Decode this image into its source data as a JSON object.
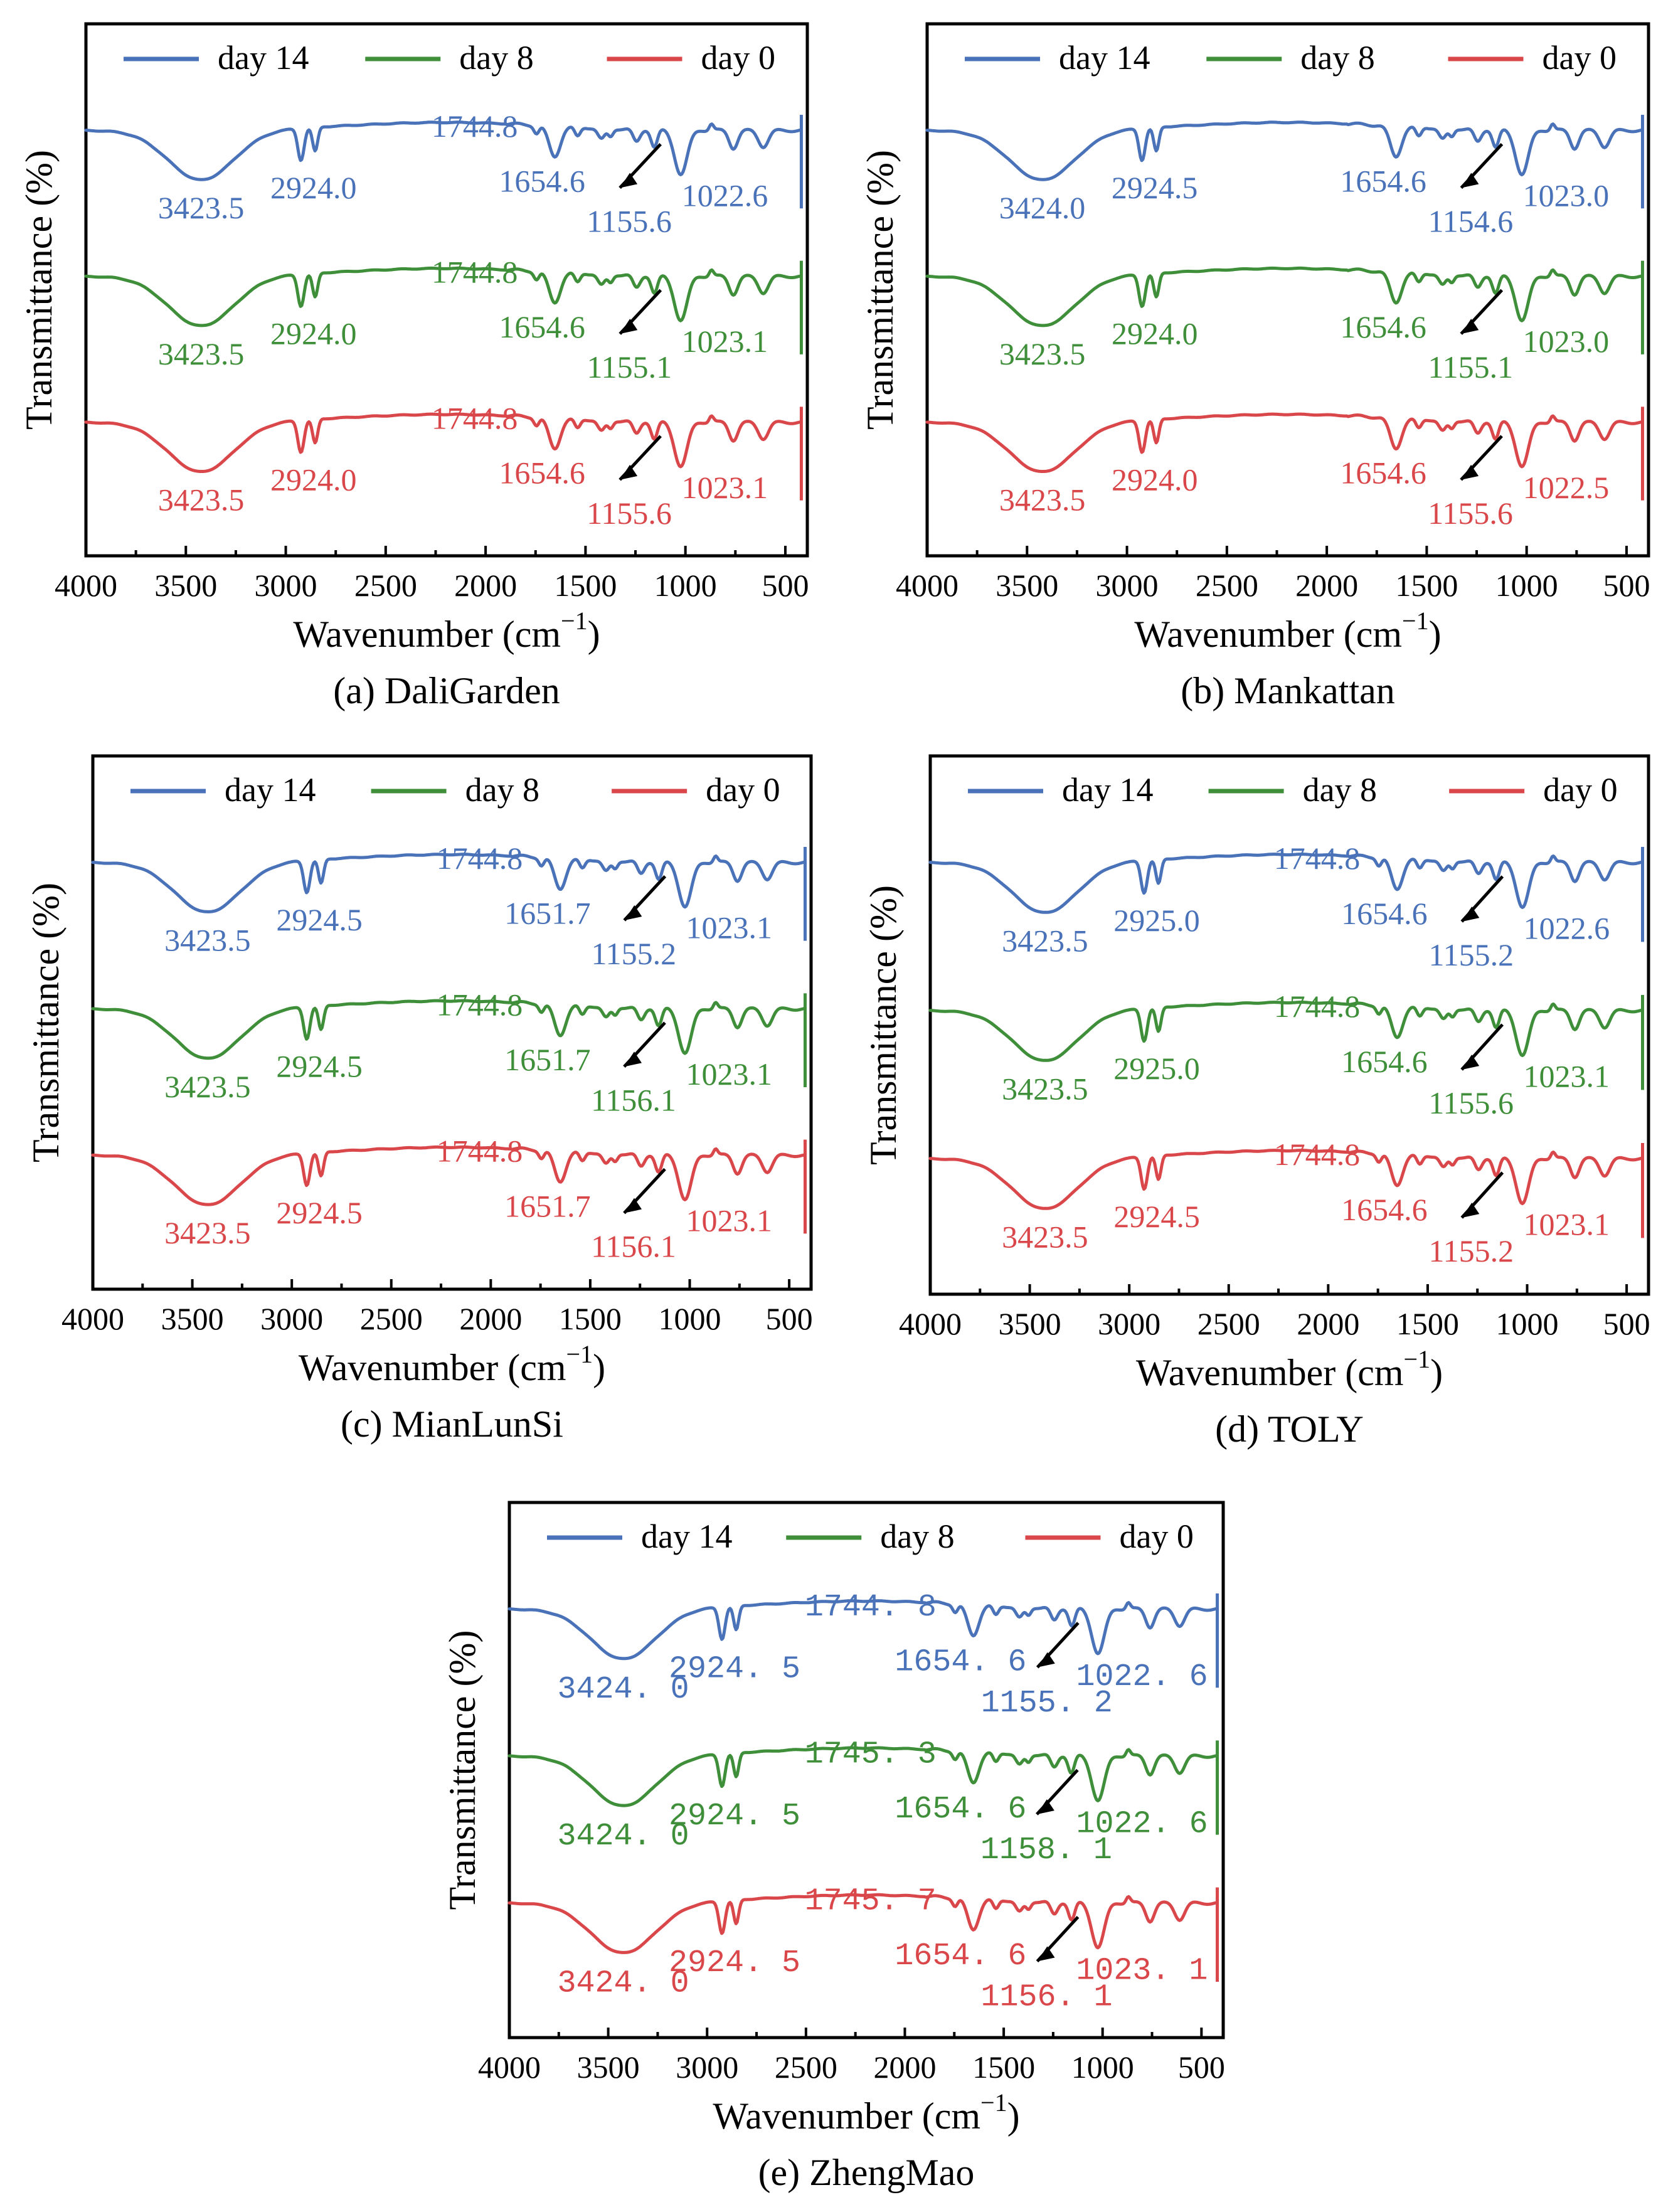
{
  "colors": {
    "day 14": "#4a72b8",
    "day 8": "#3f8f3a",
    "day 0": "#d9474a"
  },
  "chart_data": [
    {
      "type": "line",
      "caption": "(a) DaliGarden",
      "xlabel": "Wavenumber (cm−1)",
      "ylabel": "Transmittance (%)",
      "xlim": [
        4000,
        400
      ],
      "xticks": [
        "4000",
        "3500",
        "3000",
        "2500",
        "2000",
        "1500",
        "1000",
        "500"
      ],
      "legend": [
        "day 14",
        "day 8",
        "day 0"
      ],
      "legend_position": "top",
      "series": [
        {
          "name": "day 14",
          "offset": 0,
          "peaks": [
            {
              "wn": 3423.5,
              "label": "3423.5"
            },
            {
              "wn": 2924.0,
              "label": "2924.0"
            },
            {
              "wn": 1744.8,
              "label": "1744.8",
              "shoulder": true
            },
            {
              "wn": 1654.6,
              "label": "1654.6"
            },
            {
              "wn": 1155.6,
              "label": "1155.6",
              "arrow": true
            },
            {
              "wn": 1022.6,
              "label": "1022.6"
            }
          ]
        },
        {
          "name": "day 8",
          "offset": 1,
          "peaks": [
            {
              "wn": 3423.5,
              "label": "3423.5"
            },
            {
              "wn": 2924.0,
              "label": "2924.0"
            },
            {
              "wn": 1744.8,
              "label": "1744.8",
              "shoulder": true
            },
            {
              "wn": 1654.6,
              "label": "1654.6"
            },
            {
              "wn": 1155.1,
              "label": "1155.1",
              "arrow": true
            },
            {
              "wn": 1023.1,
              "label": "1023.1"
            }
          ]
        },
        {
          "name": "day 0",
          "offset": 2,
          "peaks": [
            {
              "wn": 3423.5,
              "label": "3423.5"
            },
            {
              "wn": 2924.0,
              "label": "2924.0"
            },
            {
              "wn": 1744.8,
              "label": "1744.8",
              "shoulder": true
            },
            {
              "wn": 1654.6,
              "label": "1654.6"
            },
            {
              "wn": 1155.6,
              "label": "1155.6",
              "arrow": true
            },
            {
              "wn": 1023.1,
              "label": "1023.1"
            }
          ]
        }
      ]
    },
    {
      "type": "line",
      "caption": "(b) Mankattan",
      "xlabel": "Wavenumber (cm−1)",
      "ylabel": "Transmittance (%)",
      "xlim": [
        4000,
        400
      ],
      "xticks": [
        "4000",
        "3500",
        "3000",
        "2500",
        "2000",
        "1500",
        "1000",
        "500"
      ],
      "legend": [
        "day 14",
        "day 8",
        "day 0"
      ],
      "legend_position": "top",
      "series": [
        {
          "name": "day 14",
          "offset": 0,
          "peaks": [
            {
              "wn": 3424.0,
              "label": "3424.0"
            },
            {
              "wn": 2924.5,
              "label": "2924.5"
            },
            {
              "wn": 1654.6,
              "label": "1654.6"
            },
            {
              "wn": 1154.6,
              "label": "1154.6",
              "arrow": true
            },
            {
              "wn": 1023.0,
              "label": "1023.0"
            }
          ]
        },
        {
          "name": "day 8",
          "offset": 1,
          "peaks": [
            {
              "wn": 3423.5,
              "label": "3423.5"
            },
            {
              "wn": 2924.0,
              "label": "2924.0"
            },
            {
              "wn": 1654.6,
              "label": "1654.6"
            },
            {
              "wn": 1155.1,
              "label": "1155.1",
              "arrow": true
            },
            {
              "wn": 1023.0,
              "label": "1023.0"
            }
          ]
        },
        {
          "name": "day 0",
          "offset": 2,
          "peaks": [
            {
              "wn": 3423.5,
              "label": "3423.5"
            },
            {
              "wn": 2924.0,
              "label": "2924.0"
            },
            {
              "wn": 1654.6,
              "label": "1654.6"
            },
            {
              "wn": 1155.6,
              "label": "1155.6",
              "arrow": true
            },
            {
              "wn": 1022.5,
              "label": "1022.5"
            }
          ]
        }
      ]
    },
    {
      "type": "line",
      "caption": "(c) MianLunSi",
      "xlabel": "Wavenumber (cm−1)",
      "ylabel": "Transmittance (%)",
      "xlim": [
        4000,
        400
      ],
      "xticks": [
        "4000",
        "3500",
        "3000",
        "2500",
        "2000",
        "1500",
        "1000",
        "500"
      ],
      "legend": [
        "day 14",
        "day 8",
        "day 0"
      ],
      "legend_position": "top",
      "series": [
        {
          "name": "day 14",
          "offset": 0,
          "peaks": [
            {
              "wn": 3423.5,
              "label": "3423.5"
            },
            {
              "wn": 2924.5,
              "label": "2924.5"
            },
            {
              "wn": 1744.8,
              "label": "1744.8",
              "shoulder": true
            },
            {
              "wn": 1651.7,
              "label": "1651.7"
            },
            {
              "wn": 1155.2,
              "label": "1155.2",
              "arrow": true
            },
            {
              "wn": 1023.1,
              "label": "1023.1"
            }
          ]
        },
        {
          "name": "day 8",
          "offset": 1,
          "peaks": [
            {
              "wn": 3423.5,
              "label": "3423.5"
            },
            {
              "wn": 2924.5,
              "label": "2924.5"
            },
            {
              "wn": 1744.8,
              "label": "1744.8",
              "shoulder": true
            },
            {
              "wn": 1651.7,
              "label": "1651.7"
            },
            {
              "wn": 1156.1,
              "label": "1156.1",
              "arrow": true
            },
            {
              "wn": 1023.1,
              "label": "1023.1"
            }
          ]
        },
        {
          "name": "day 0",
          "offset": 2,
          "peaks": [
            {
              "wn": 3423.5,
              "label": "3423.5"
            },
            {
              "wn": 2924.5,
              "label": "2924.5"
            },
            {
              "wn": 1744.8,
              "label": "1744.8",
              "shoulder": true
            },
            {
              "wn": 1651.7,
              "label": "1651.7"
            },
            {
              "wn": 1156.1,
              "label": "1156.1",
              "arrow": true
            },
            {
              "wn": 1023.1,
              "label": "1023.1"
            }
          ]
        }
      ]
    },
    {
      "type": "line",
      "caption": "(d) TOLY",
      "xlabel": "Wavenumber (cm−1)",
      "ylabel": "Transmittance (%)",
      "xlim": [
        4000,
        400
      ],
      "xticks": [
        "4000",
        "3500",
        "3000",
        "2500",
        "2000",
        "1500",
        "1000",
        "500"
      ],
      "legend": [
        "day 14",
        "day 8",
        "day 0"
      ],
      "legend_position": "top",
      "series": [
        {
          "name": "day 14",
          "offset": 0,
          "peaks": [
            {
              "wn": 3423.5,
              "label": "3423.5"
            },
            {
              "wn": 2925.0,
              "label": "2925.0"
            },
            {
              "wn": 1744.8,
              "label": "1744.8",
              "shoulder": true
            },
            {
              "wn": 1654.6,
              "label": "1654.6"
            },
            {
              "wn": 1155.2,
              "label": "1155.2",
              "arrow": true
            },
            {
              "wn": 1022.6,
              "label": "1022.6"
            }
          ]
        },
        {
          "name": "day 8",
          "offset": 1,
          "peaks": [
            {
              "wn": 3423.5,
              "label": "3423.5"
            },
            {
              "wn": 2925.0,
              "label": "2925.0"
            },
            {
              "wn": 1744.8,
              "label": "1744.8",
              "shoulder": true
            },
            {
              "wn": 1654.6,
              "label": "1654.6"
            },
            {
              "wn": 1155.6,
              "label": "1155.6",
              "arrow": true
            },
            {
              "wn": 1023.1,
              "label": "1023.1"
            }
          ]
        },
        {
          "name": "day 0",
          "offset": 2,
          "peaks": [
            {
              "wn": 3423.5,
              "label": "3423.5"
            },
            {
              "wn": 2924.5,
              "label": "2924.5"
            },
            {
              "wn": 1744.8,
              "label": "1744.8",
              "shoulder": true
            },
            {
              "wn": 1654.6,
              "label": "1654.6"
            },
            {
              "wn": 1155.2,
              "label": "1155.2",
              "arrow": true
            },
            {
              "wn": 1023.1,
              "label": "1023.1"
            }
          ]
        }
      ]
    },
    {
      "type": "line",
      "caption": "(e) ZhengMao",
      "xlabel": "Wavenumber (cm−1)",
      "ylabel": "Transmittance (%)",
      "xlim": [
        4000,
        400
      ],
      "xticks": [
        "4000",
        "3500",
        "3000",
        "2500",
        "2000",
        "1500",
        "1000",
        "500"
      ],
      "legend": [
        "day 14",
        "day 8",
        "day 0"
      ],
      "legend_position": "top",
      "label_font": "mono",
      "series": [
        {
          "name": "day 14",
          "offset": 0,
          "peaks": [
            {
              "wn": 3424.0,
              "label": "3424. 0"
            },
            {
              "wn": 2924.5,
              "label": "2924. 5"
            },
            {
              "wn": 1744.8,
              "label": "1744. 8",
              "shoulder": true
            },
            {
              "wn": 1654.6,
              "label": "1654. 6"
            },
            {
              "wn": 1155.2,
              "label": "1155. 2",
              "arrow": true
            },
            {
              "wn": 1022.6,
              "label": "1022. 6"
            }
          ]
        },
        {
          "name": "day 8",
          "offset": 1,
          "peaks": [
            {
              "wn": 3424.0,
              "label": "3424. 0"
            },
            {
              "wn": 2924.5,
              "label": "2924. 5"
            },
            {
              "wn": 1745.3,
              "label": "1745. 3",
              "shoulder": true
            },
            {
              "wn": 1654.6,
              "label": "1654. 6"
            },
            {
              "wn": 1158.1,
              "label": "1158. 1",
              "arrow": true
            },
            {
              "wn": 1022.6,
              "label": "1022. 6"
            }
          ]
        },
        {
          "name": "day 0",
          "offset": 2,
          "peaks": [
            {
              "wn": 3424.0,
              "label": "3424. 0"
            },
            {
              "wn": 2924.5,
              "label": "2924. 5"
            },
            {
              "wn": 1745.7,
              "label": "1745. 7",
              "shoulder": true
            },
            {
              "wn": 1654.6,
              "label": "1654. 6"
            },
            {
              "wn": 1156.1,
              "label": "1156. 1",
              "arrow": true
            },
            {
              "wn": 1023.1,
              "label": "1023. 1"
            }
          ]
        }
      ]
    }
  ]
}
